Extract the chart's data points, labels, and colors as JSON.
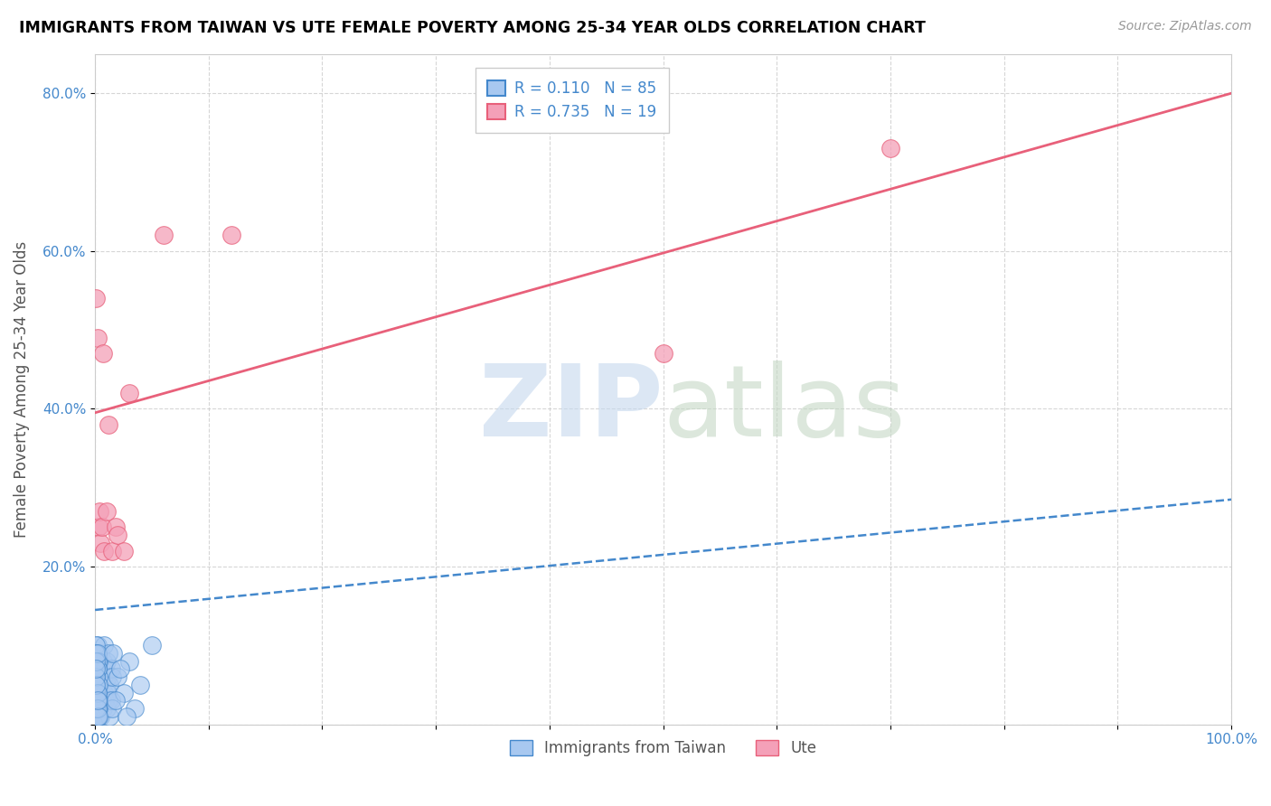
{
  "title": "IMMIGRANTS FROM TAIWAN VS UTE FEMALE POVERTY AMONG 25-34 YEAR OLDS CORRELATION CHART",
  "source": "Source: ZipAtlas.com",
  "ylabel": "Female Poverty Among 25-34 Year Olds",
  "xlim": [
    0,
    1.0
  ],
  "ylim": [
    0,
    0.85
  ],
  "x_ticks": [
    0.0,
    0.1,
    0.2,
    0.3,
    0.4,
    0.5,
    0.6,
    0.7,
    0.8,
    0.9,
    1.0
  ],
  "x_tick_labels": [
    "0.0%",
    "",
    "",
    "",
    "",
    "",
    "",
    "",
    "",
    "",
    "100.0%"
  ],
  "y_ticks": [
    0.0,
    0.2,
    0.4,
    0.6,
    0.8
  ],
  "y_tick_labels": [
    "",
    "20.0%",
    "40.0%",
    "60.0%",
    "80.0%"
  ],
  "legend_taiwan_r": "R = 0.110",
  "legend_taiwan_n": "N = 85",
  "legend_ute_r": "R = 0.735",
  "legend_ute_n": "N = 19",
  "color_taiwan": "#a8c8f0",
  "color_ute": "#f4a0b8",
  "color_taiwan_line": "#4488cc",
  "color_ute_line": "#e8607a",
  "taiwan_x": [
    0.0005,
    0.001,
    0.001,
    0.002,
    0.002,
    0.002,
    0.003,
    0.003,
    0.003,
    0.003,
    0.004,
    0.004,
    0.004,
    0.005,
    0.005,
    0.005,
    0.005,
    0.006,
    0.006,
    0.007,
    0.007,
    0.007,
    0.008,
    0.008,
    0.008,
    0.009,
    0.009,
    0.01,
    0.01,
    0.01,
    0.011,
    0.011,
    0.012,
    0.012,
    0.013,
    0.013,
    0.014,
    0.014,
    0.015,
    0.015,
    0.001,
    0.002,
    0.003,
    0.001,
    0.002,
    0.001,
    0.002,
    0.003,
    0.001,
    0.002,
    0.001,
    0.002,
    0.001,
    0.002,
    0.001,
    0.003,
    0.001,
    0.002,
    0.001,
    0.002,
    0.001,
    0.002,
    0.003,
    0.001,
    0.002,
    0.003,
    0.001,
    0.002,
    0.001,
    0.002,
    0.001,
    0.002,
    0.003,
    0.001,
    0.002,
    0.02,
    0.025,
    0.03,
    0.035,
    0.04,
    0.016,
    0.018,
    0.022,
    0.028,
    0.05
  ],
  "taiwan_y": [
    0.05,
    0.02,
    0.08,
    0.04,
    0.06,
    0.1,
    0.03,
    0.07,
    0.09,
    0.01,
    0.05,
    0.08,
    0.02,
    0.06,
    0.04,
    0.09,
    0.01,
    0.03,
    0.07,
    0.05,
    0.02,
    0.08,
    0.04,
    0.06,
    0.1,
    0.03,
    0.07,
    0.05,
    0.02,
    0.08,
    0.04,
    0.06,
    0.03,
    0.09,
    0.05,
    0.01,
    0.07,
    0.03,
    0.06,
    0.02,
    0.03,
    0.05,
    0.02,
    0.07,
    0.04,
    0.09,
    0.01,
    0.06,
    0.08,
    0.03,
    0.04,
    0.07,
    0.1,
    0.02,
    0.05,
    0.08,
    0.06,
    0.03,
    0.09,
    0.01,
    0.04,
    0.08,
    0.05,
    0.02,
    0.07,
    0.03,
    0.06,
    0.04,
    0.08,
    0.02,
    0.05,
    0.09,
    0.01,
    0.07,
    0.03,
    0.06,
    0.04,
    0.08,
    0.02,
    0.05,
    0.09,
    0.03,
    0.07,
    0.01,
    0.1
  ],
  "ute_x": [
    0.001,
    0.002,
    0.003,
    0.004,
    0.005,
    0.006,
    0.007,
    0.008,
    0.01,
    0.012,
    0.015,
    0.018,
    0.02,
    0.025,
    0.03,
    0.06,
    0.12,
    0.5,
    0.7
  ],
  "ute_y": [
    0.54,
    0.49,
    0.25,
    0.27,
    0.23,
    0.25,
    0.47,
    0.22,
    0.27,
    0.38,
    0.22,
    0.25,
    0.24,
    0.22,
    0.42,
    0.62,
    0.62,
    0.47,
    0.73
  ],
  "taiwan_trendline_x": [
    0.0,
    1.0
  ],
  "taiwan_trendline_y": [
    0.145,
    0.285
  ],
  "ute_trendline_x": [
    0.0,
    1.0
  ],
  "ute_trendline_y": [
    0.395,
    0.8
  ]
}
